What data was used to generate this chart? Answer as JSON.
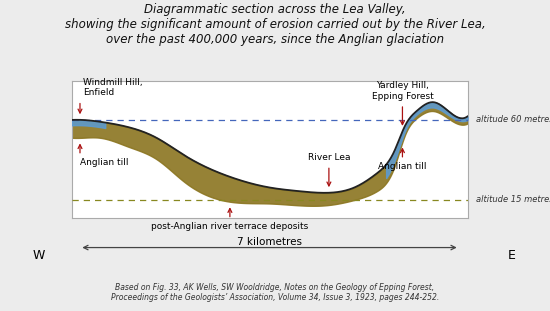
{
  "title": "Diagrammatic section across the Lea Valley,\nshowing the significant amount of erosion carried out by the River Lea,\nover the past 400,000 years, since the Anglian glaciation",
  "title_fontsize": 8.5,
  "bg_color": "#ececec",
  "plot_bg": "#ffffff",
  "citation": "Based on Fig. 33, AK Wells, SW Wooldridge, Notes on the Geology of Epping Forest,\nProceedings of the Geologists’ Association, Volume 34, Issue 3, 1923, pages 244-252.",
  "surface_x": [
    0.0,
    0.2,
    0.5,
    1.0,
    1.5,
    2.0,
    2.8,
    3.5,
    4.0,
    4.5,
    5.0,
    5.4,
    5.7,
    5.9,
    6.1,
    6.4,
    6.7,
    7.0
  ],
  "surface_y": [
    60,
    60,
    59,
    56,
    50,
    40,
    28,
    22,
    20,
    19,
    22,
    30,
    42,
    57,
    65,
    70,
    64,
    62
  ],
  "base_x": [
    0.0,
    0.2,
    0.5,
    1.0,
    1.5,
    2.0,
    2.8,
    3.5,
    4.0,
    4.5,
    5.0,
    5.4,
    5.7,
    5.9,
    6.1,
    6.4,
    6.7,
    7.0
  ],
  "base_y": [
    57,
    57,
    56,
    52,
    44,
    32,
    18,
    14,
    13,
    13,
    16,
    22,
    36,
    54,
    63,
    67,
    62,
    60
  ],
  "bottom_y": [
    50,
    50,
    50,
    45,
    38,
    25,
    14,
    13,
    12,
    12,
    15,
    20,
    33,
    52,
    61,
    65,
    60,
    58
  ],
  "till_color": "#5b9bd5",
  "deposit_color": "#8b7520",
  "surface_color": "#222222",
  "dashed60_color": "#4466bb",
  "dashed15_color": "#888820",
  "arrow_color": "#aa1111",
  "alt60": 60,
  "alt15": 15,
  "ymin": 5,
  "ymax": 82,
  "xmin": 0.0,
  "xmax": 7.0,
  "windmill_x": 0.15,
  "windmill_label": "Windmill Hill,\nEnfield",
  "riverlea_x": 4.55,
  "riverlea_label": "River Lea",
  "yardley_x": 5.85,
  "yardley_label": "Yardley Hill,\nEpping Forest",
  "anglianleft_label": "Anglian till",
  "deposit_label": "post-Anglian river terrace deposits",
  "anglianright_label": "Anglian till",
  "km_label": "7 kilometres",
  "west_label": "W",
  "east_label": "E"
}
